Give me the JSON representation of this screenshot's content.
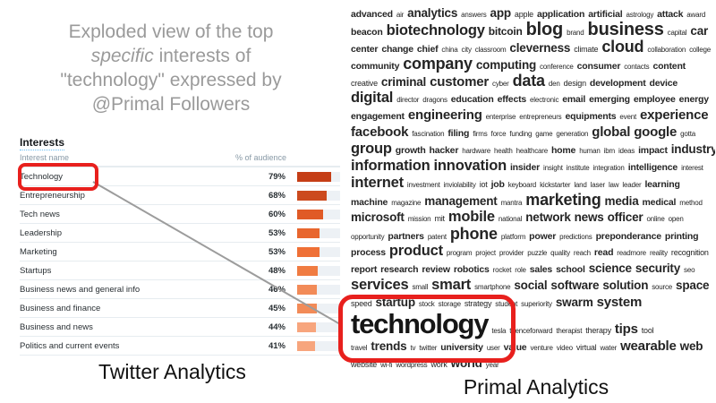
{
  "title": {
    "line1": "Exploded view of the top",
    "line2_italic": "specific",
    "line2_rest": " interests of",
    "line3": "\"technology\" expressed by",
    "line4": "@Primal Followers"
  },
  "twitter": {
    "heading": "Interests",
    "columns": {
      "name": "Interest name",
      "audience": "% of audience"
    },
    "rows": [
      {
        "name": "Technology",
        "pct": "79%",
        "value": 79,
        "color": "#c53e16"
      },
      {
        "name": "Entrepreneurship",
        "pct": "68%",
        "value": 68,
        "color": "#cc4a1e"
      },
      {
        "name": "Tech news",
        "pct": "60%",
        "value": 60,
        "color": "#e05a26"
      },
      {
        "name": "Leadership",
        "pct": "53%",
        "value": 53,
        "color": "#e8662e"
      },
      {
        "name": "Marketing",
        "pct": "53%",
        "value": 53,
        "color": "#ef7036"
      },
      {
        "name": "Startups",
        "pct": "48%",
        "value": 48,
        "color": "#f07c42"
      },
      {
        "name": "Business news and general info",
        "pct": "46%",
        "value": 46,
        "color": "#f28b58"
      },
      {
        "name": "Business and finance",
        "pct": "45%",
        "value": 45,
        "color": "#f28b58"
      },
      {
        "name": "Business and news",
        "pct": "44%",
        "value": 44,
        "color": "#f7a57d"
      },
      {
        "name": "Politics and current events",
        "pct": "41%",
        "value": 41,
        "color": "#f7a57d"
      }
    ],
    "caption": "Twitter Analytics"
  },
  "primal": {
    "caption": "Primal Analytics",
    "highlighted_word": "technology",
    "lines": [
      [
        [
          "advanced",
          3
        ],
        [
          "air",
          1
        ],
        [
          "analytics",
          5
        ],
        [
          "answers",
          1
        ],
        [
          "app",
          5
        ],
        [
          "apple",
          2
        ],
        [
          "application",
          3
        ],
        [
          "artificial",
          3
        ],
        [
          "astrology",
          1
        ],
        [
          "attack",
          3
        ],
        [
          "award",
          1
        ]
      ],
      [
        [
          "beacon",
          3
        ],
        [
          "biotechnology",
          7
        ],
        [
          "bitcoin",
          4
        ],
        [
          "blog",
          9
        ],
        [
          "brand",
          1
        ],
        [
          "business",
          9
        ],
        [
          "capital",
          1
        ],
        [
          "car",
          5
        ]
      ],
      [
        [
          "center",
          3
        ],
        [
          "change",
          3
        ],
        [
          "chief",
          3
        ],
        [
          "china",
          1
        ],
        [
          "city",
          1
        ],
        [
          "classroom",
          1
        ],
        [
          "cleverness",
          5
        ],
        [
          "climate",
          2
        ],
        [
          "cloud",
          8
        ],
        [
          "collaboration",
          1
        ],
        [
          "college",
          1
        ]
      ],
      [
        [
          "community",
          3
        ],
        [
          "company",
          8
        ],
        [
          "computing",
          5
        ],
        [
          "conference",
          1
        ],
        [
          "consumer",
          3
        ],
        [
          "contacts",
          1
        ],
        [
          "content",
          3
        ]
      ],
      [
        [
          "creative",
          2
        ],
        [
          "criminal",
          5
        ],
        [
          "customer",
          6
        ],
        [
          "cyber",
          1
        ],
        [
          "data",
          8
        ],
        [
          "den",
          1
        ],
        [
          "design",
          2
        ],
        [
          "development",
          3
        ],
        [
          "device",
          3
        ]
      ],
      [
        [
          "digital",
          7
        ],
        [
          "director",
          1
        ],
        [
          "dragons",
          1
        ],
        [
          "education",
          3
        ],
        [
          "effects",
          3
        ],
        [
          "electronic",
          1
        ],
        [
          "email",
          3
        ],
        [
          "emerging",
          3
        ],
        [
          "employee",
          3
        ],
        [
          "energy",
          3
        ]
      ],
      [
        [
          "engagement",
          3
        ],
        [
          "engineering",
          6
        ],
        [
          "enterprise",
          1
        ],
        [
          "entrepreneurs",
          1
        ],
        [
          "equipments",
          3
        ],
        [
          "event",
          1
        ],
        [
          "experience",
          6
        ]
      ],
      [
        [
          "facebook",
          6
        ],
        [
          "fascination",
          1
        ],
        [
          "filing",
          3
        ],
        [
          "firms",
          1
        ],
        [
          "force",
          1
        ],
        [
          "funding",
          1
        ],
        [
          "game",
          1
        ],
        [
          "generation",
          1
        ],
        [
          "global",
          6
        ],
        [
          "google",
          6
        ],
        [
          "gotta",
          1
        ]
      ],
      [
        [
          "group",
          7
        ],
        [
          "growth",
          3
        ],
        [
          "hacker",
          3
        ],
        [
          "hardware",
          1
        ],
        [
          "health",
          1
        ],
        [
          "healthcare",
          1
        ],
        [
          "home",
          3
        ],
        [
          "human",
          1
        ],
        [
          "ibm",
          1
        ],
        [
          "ideas",
          1
        ],
        [
          "impact",
          3
        ],
        [
          "industry",
          5
        ]
      ],
      [
        [
          "information",
          7
        ],
        [
          "innovation",
          7
        ],
        [
          "insider",
          3
        ],
        [
          "insight",
          1
        ],
        [
          "institute",
          1
        ],
        [
          "integration",
          1
        ],
        [
          "intelligence",
          3
        ],
        [
          "interest",
          1
        ]
      ],
      [
        [
          "internet",
          7
        ],
        [
          "investment",
          1
        ],
        [
          "inviolability",
          1
        ],
        [
          "iot",
          2
        ],
        [
          "job",
          3
        ],
        [
          "keyboard",
          1
        ],
        [
          "kickstarter",
          1
        ],
        [
          "land",
          1
        ],
        [
          "laser",
          1
        ],
        [
          "law",
          1
        ],
        [
          "leader",
          1
        ],
        [
          "learning",
          3
        ]
      ],
      [
        [
          "machine",
          3
        ],
        [
          "magazine",
          1
        ],
        [
          "management",
          5
        ],
        [
          "mantra",
          1
        ],
        [
          "marketing",
          8
        ],
        [
          "media",
          5
        ],
        [
          "medical",
          3
        ],
        [
          "method",
          1
        ]
      ],
      [
        [
          "microsoft",
          5
        ],
        [
          "mission",
          1
        ],
        [
          "mit",
          2
        ],
        [
          "mobile",
          7
        ],
        [
          "national",
          1
        ],
        [
          "network",
          5
        ],
        [
          "news",
          5
        ],
        [
          "officer",
          5
        ],
        [
          "online",
          1
        ],
        [
          "open",
          1
        ]
      ],
      [
        [
          "opportunity",
          1
        ],
        [
          "partners",
          3
        ],
        [
          "patent",
          1
        ],
        [
          "phone",
          8
        ],
        [
          "platform",
          1
        ],
        [
          "power",
          3
        ],
        [
          "predictions",
          1
        ],
        [
          "preponderance",
          3
        ],
        [
          "printing",
          3
        ]
      ],
      [
        [
          "process",
          3
        ],
        [
          "product",
          7
        ],
        [
          "program",
          1
        ],
        [
          "project",
          1
        ],
        [
          "provider",
          1
        ],
        [
          "puzzle",
          1
        ],
        [
          "quality",
          1
        ],
        [
          "reach",
          1
        ],
        [
          "read",
          3
        ],
        [
          "readmore",
          1
        ],
        [
          "reality",
          1
        ],
        [
          "recognition",
          2
        ]
      ],
      [
        [
          "report",
          3
        ],
        [
          "research",
          3
        ],
        [
          "review",
          3
        ],
        [
          "robotics",
          3
        ],
        [
          "rocket",
          1
        ],
        [
          "role",
          1
        ],
        [
          "sales",
          3
        ],
        [
          "school",
          3
        ],
        [
          "science",
          5
        ],
        [
          "security",
          5
        ],
        [
          "seo",
          1
        ]
      ],
      [
        [
          "services",
          7
        ],
        [
          "small",
          1
        ],
        [
          "smart",
          7
        ],
        [
          "smartphone",
          1
        ],
        [
          "social",
          5
        ],
        [
          "software",
          5
        ],
        [
          "solution",
          5
        ],
        [
          "source",
          1
        ],
        [
          "space",
          5
        ]
      ],
      [
        [
          "speed",
          2
        ],
        [
          "startup",
          5
        ],
        [
          "stock",
          1
        ],
        [
          "storage",
          1
        ],
        [
          "strategy",
          2
        ],
        [
          "student",
          1
        ],
        [
          "superiority",
          1
        ],
        [
          "swarm",
          5
        ],
        [
          "system",
          6
        ]
      ],
      [
        [
          "technology",
          10
        ],
        [
          "tesla",
          1
        ],
        [
          "thenceforward",
          1
        ],
        [
          "therapist",
          1
        ],
        [
          "therapy",
          2
        ],
        [
          "tips",
          6
        ],
        [
          "tool",
          2
        ]
      ],
      [
        [
          "travel",
          1
        ],
        [
          "trends",
          5
        ],
        [
          "tv",
          1
        ],
        [
          "twitter",
          1
        ],
        [
          "university",
          3
        ],
        [
          "user",
          1
        ],
        [
          "value",
          3
        ],
        [
          "venture",
          1
        ],
        [
          "video",
          1
        ],
        [
          "virtual",
          2
        ],
        [
          "water",
          1
        ],
        [
          "wearable",
          6
        ],
        [
          "web",
          5
        ]
      ],
      [
        [
          "website",
          2
        ],
        [
          "wi-fi",
          1
        ],
        [
          "wordpress",
          1
        ],
        [
          "work",
          2
        ],
        [
          "world",
          5
        ],
        [
          "year",
          1
        ]
      ]
    ]
  },
  "colors": {
    "highlight_red": "#e8201d",
    "connector": "#9c9c9c",
    "bar_track": "#edf1f5"
  }
}
